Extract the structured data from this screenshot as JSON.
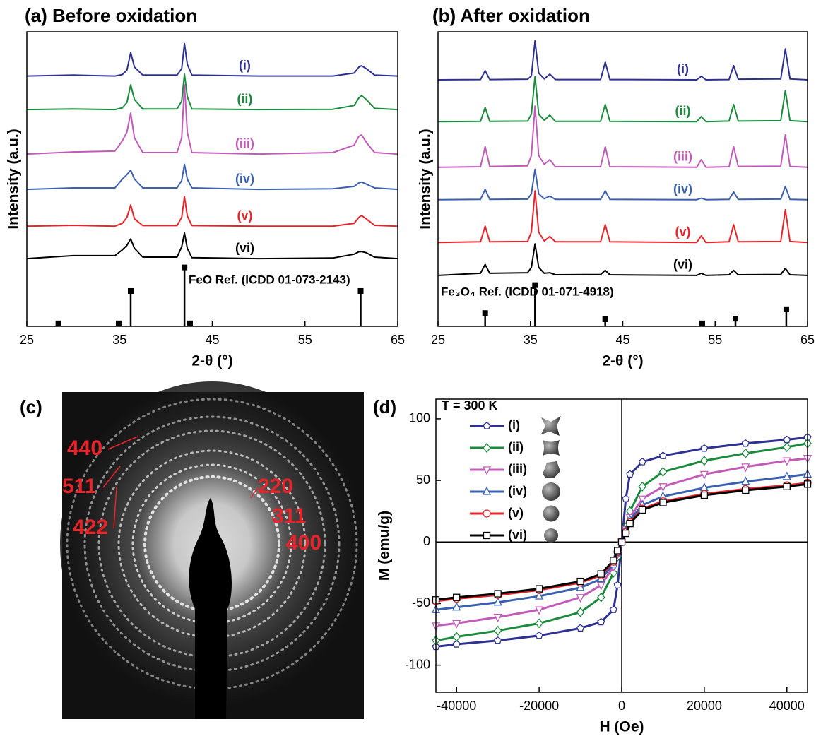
{
  "chart_data": [
    {
      "type": "line",
      "title": "(a) Before oxidation",
      "xlabel": "2-θ (°)",
      "ylabel": "Intensity (a.u.)",
      "xlim": [
        25,
        65
      ],
      "xticks": [
        25,
        35,
        45,
        55,
        65
      ],
      "ylim": [
        0,
        100
      ],
      "x": [
        25,
        30,
        34.5,
        35.3,
        35.8,
        36.2,
        36.6,
        37.5,
        41.2,
        41.7,
        42.0,
        42.3,
        42.8,
        50,
        58,
        60.3,
        60.8,
        61.1,
        61.6,
        62.5,
        65
      ],
      "series": [
        {
          "name": "(i)",
          "color": "#2e3192",
          "values": [
            85,
            85.3,
            85,
            85.5,
            87,
            93,
            88,
            85.3,
            85.3,
            87.5,
            96,
            89,
            85.3,
            85,
            85,
            86,
            88,
            88.5,
            87.5,
            85.3,
            85
          ]
        },
        {
          "name": "(ii)",
          "color": "#1a8a3c",
          "values": [
            73.6,
            73.8,
            73.6,
            74.2,
            76,
            82,
            77,
            73.8,
            73.8,
            76.5,
            85.6,
            78,
            73.8,
            73.6,
            73.7,
            75,
            77.5,
            78.4,
            77,
            74,
            73.6
          ]
        },
        {
          "name": "(iii)",
          "color": "#c25ab8",
          "values": [
            58.5,
            59.2,
            59.5,
            63,
            66,
            72.4,
            64,
            59,
            59,
            64,
            82,
            66,
            59,
            58.5,
            59,
            61.5,
            64.5,
            65,
            62.5,
            59,
            58.5
          ]
        },
        {
          "name": "(iv)",
          "color": "#3b60b0",
          "values": [
            46.5,
            47,
            47,
            50,
            51.5,
            53,
            50,
            47,
            47,
            49.5,
            55,
            50,
            47,
            46.5,
            46.7,
            47.5,
            48.7,
            49,
            48.3,
            47,
            46.5
          ]
        },
        {
          "name": "(v)",
          "color": "#e8242a",
          "values": [
            34,
            34.3,
            34,
            35,
            37,
            41.2,
            36.5,
            34.2,
            34.2,
            37,
            44,
            37.5,
            34.2,
            34,
            34,
            35,
            37,
            37.6,
            36.5,
            34.3,
            34
          ]
        },
        {
          "name": "(vi)",
          "color": "#000000",
          "values": [
            23,
            24,
            24,
            26,
            27.5,
            29.7,
            26.5,
            23.5,
            23.5,
            27,
            31.7,
            26.5,
            23.3,
            23,
            23.2,
            24.5,
            25.3,
            25.4,
            25,
            23.5,
            23
          ]
        }
      ],
      "reference": {
        "label": "FeO Ref. (ICDD 01-073-2143)",
        "x": [
          28.4,
          34.9,
          36.2,
          42.0,
          42.6,
          61.0
        ],
        "values": [
          1,
          1,
          12,
          20,
          1,
          12
        ]
      }
    },
    {
      "type": "line",
      "title": "(b) After oxidation",
      "xlabel": "2-θ (°)",
      "ylabel": "Intensity (a.u.)",
      "xlim": [
        25,
        65
      ],
      "xticks": [
        25,
        35,
        45,
        55,
        65
      ],
      "ylim": [
        0,
        100
      ],
      "x": [
        25,
        29.6,
        30.1,
        30.6,
        34.7,
        35.1,
        35.5,
        35.9,
        36.5,
        37.1,
        37.7,
        42.6,
        43.1,
        43.6,
        53,
        53.5,
        54,
        56.5,
        57,
        57.5,
        62.1,
        62.6,
        63.1,
        65
      ],
      "series": [
        {
          "name": "(i)",
          "color": "#2e3192",
          "values": [
            83.7,
            83.8,
            86.8,
            83.8,
            83.9,
            85,
            96.9,
            86,
            84,
            85.6,
            83.8,
            83.8,
            89.7,
            83.8,
            83.7,
            84.9,
            83.7,
            83.8,
            88.5,
            83.9,
            84,
            94.2,
            84,
            83.7
          ]
        },
        {
          "name": "(ii)",
          "color": "#1a8a3c",
          "values": [
            69.5,
            69.6,
            74.3,
            69.6,
            69.7,
            72,
            84.9,
            72,
            70,
            71.7,
            69.6,
            69.6,
            75.3,
            69.6,
            69.5,
            71.2,
            69.5,
            69.7,
            75.3,
            69.7,
            69.8,
            80.1,
            69.8,
            69.5
          ]
        },
        {
          "name": "(iii)",
          "color": "#c25ab8",
          "values": [
            54,
            54.2,
            61,
            54.3,
            54.5,
            58,
            74.8,
            58,
            55,
            56.6,
            54.2,
            54.2,
            61,
            54.2,
            54,
            56.6,
            54,
            54.2,
            61,
            54.3,
            54.4,
            65,
            54.3,
            54
          ]
        },
        {
          "name": "(iv)",
          "color": "#3b60b0",
          "values": [
            43,
            43.1,
            46.5,
            43.1,
            43.2,
            45,
            53.3,
            45,
            43.3,
            44.2,
            43.1,
            43.1,
            46,
            43.1,
            43,
            43.5,
            43,
            43.1,
            45.6,
            43.1,
            43.2,
            47.5,
            43.1,
            43
          ]
        },
        {
          "name": "(v)",
          "color": "#e8242a",
          "values": [
            28.5,
            28.7,
            34,
            28.7,
            28.8,
            32,
            46,
            32,
            29,
            30.5,
            28.7,
            28.7,
            34.5,
            28.7,
            28.5,
            30.7,
            28.5,
            28.7,
            34.5,
            28.7,
            28.8,
            39.6,
            28.8,
            28.5
          ]
        },
        {
          "name": "(vi)",
          "color": "#000000",
          "values": [
            17.3,
            18,
            21,
            18,
            18.2,
            20,
            28,
            20,
            18,
            18.2,
            17.5,
            17.6,
            19,
            17.5,
            17.3,
            18,
            17.3,
            17.5,
            19,
            17.5,
            17.6,
            19.7,
            17.5,
            17.3
          ]
        }
      ],
      "reference": {
        "label": "Fe₃O₄ Ref. (ICDD 01-071-4918)",
        "x": [
          30.1,
          35.5,
          43.1,
          53.6,
          57.2,
          62.7
        ],
        "values": [
          4.5,
          14,
          2.4,
          1,
          2.6,
          5.8
        ]
      }
    },
    {
      "type": "line",
      "title": "(d)",
      "annotation": "T = 300 K",
      "xlabel": "H (Oe)",
      "ylabel": "M (emu/g)",
      "xlim": [
        -45000,
        45000
      ],
      "xticks": [
        -40000,
        -20000,
        0,
        20000,
        40000
      ],
      "ylim": [
        -122,
        116
      ],
      "yticks": [
        -100,
        -50,
        0,
        50,
        100
      ],
      "zero_lines": true,
      "legend": "upper left",
      "x": [
        -45000,
        -40000,
        -30000,
        -20000,
        -10000,
        -5000,
        -2000,
        -1000,
        0,
        1000,
        2000,
        5000,
        10000,
        20000,
        30000,
        40000,
        45000
      ],
      "series": [
        {
          "name": "(i)",
          "color": "#2e3192",
          "marker": "pentagon",
          "values": [
            -85,
            -83,
            -80,
            -76,
            -70,
            -65,
            -55,
            -35,
            0,
            35,
            55,
            65,
            70,
            76,
            80,
            83,
            85
          ]
        },
        {
          "name": "(ii)",
          "color": "#1a8a3c",
          "marker": "diamond",
          "values": [
            -80,
            -77,
            -72,
            -66,
            -57,
            -45,
            -25,
            -12,
            0,
            12,
            25,
            45,
            57,
            66,
            72,
            77,
            80
          ]
        },
        {
          "name": "(iii)",
          "color": "#c25ab8",
          "marker": "triangle-down",
          "values": [
            -68,
            -66,
            -61,
            -55,
            -45,
            -35,
            -20,
            -10,
            0,
            10,
            20,
            35,
            45,
            55,
            61,
            66,
            68
          ]
        },
        {
          "name": "(iv)",
          "color": "#3b60b0",
          "marker": "triangle-up",
          "values": [
            -55,
            -53,
            -49,
            -44,
            -37,
            -30,
            -18,
            -9,
            0,
            9,
            18,
            30,
            37,
            44,
            49,
            53,
            55
          ]
        },
        {
          "name": "(v)",
          "color": "#e8242a",
          "marker": "circle",
          "values": [
            -48,
            -46,
            -43,
            -39,
            -33,
            -27,
            -16,
            -8,
            0,
            8,
            16,
            27,
            33,
            39,
            43,
            46,
            48
          ]
        },
        {
          "name": "(vi)",
          "color": "#000000",
          "marker": "square",
          "values": [
            -47,
            -45,
            -42,
            -38,
            -32,
            -26,
            -15,
            -7,
            0,
            7,
            15,
            26,
            32,
            38,
            42,
            45,
            47
          ]
        }
      ]
    }
  ],
  "panel_c": {
    "label": "(c)",
    "ring_labels": [
      "440",
      "511",
      "422",
      "220",
      "311",
      "400"
    ]
  }
}
